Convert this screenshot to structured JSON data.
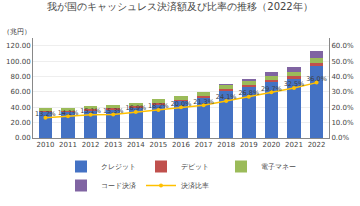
{
  "chart_data": {
    "type": "bar",
    "stacked": true,
    "title": "我が国のキャッシュレス決済額及び比率の推移（2022年）",
    "ylabel": "（兆円）",
    "categories": [
      "2010",
      "2011",
      "2012",
      "2013",
      "2014",
      "2015",
      "2016",
      "2017",
      "2018",
      "2019",
      "2020",
      "2021",
      "2022"
    ],
    "series": [
      {
        "name": "クレジット",
        "type": "bar",
        "color": "#4472C4",
        "values": [
          33.9,
          34.0,
          36.0,
          37.2,
          39.8,
          44.0,
          48.3,
          53.0,
          61.5,
          67.0,
          72.9,
          77.0,
          93.8
        ]
      },
      {
        "name": "デビット",
        "type": "bar",
        "color": "#C0504D",
        "values": [
          1.0,
          1.1,
          1.2,
          1.3,
          1.4,
          1.5,
          1.7,
          1.9,
          2.2,
          2.5,
          2.7,
          3.0,
          3.9
        ]
      },
      {
        "name": "電子マネー",
        "type": "bar",
        "color": "#9BBB59",
        "values": [
          3.8,
          4.0,
          4.3,
          4.5,
          4.9,
          5.0,
          5.1,
          5.2,
          5.4,
          5.5,
          5.3,
          5.6,
          6.1
        ]
      },
      {
        "name": "コード決済",
        "type": "bar",
        "color": "#8064A2",
        "values": [
          0.0,
          0.0,
          0.0,
          0.0,
          0.0,
          0.0,
          0.0,
          0.0,
          0.4,
          1.3,
          4.5,
          7.0,
          9.6
        ]
      },
      {
        "name": "決済比率",
        "type": "line",
        "axis": "y2",
        "color": "#FFC000",
        "marker": "circle",
        "data_labels": true,
        "values": [
          13.2,
          14.1,
          15.1,
          15.3,
          16.9,
          18.2,
          20.0,
          21.3,
          24.1,
          26.8,
          29.7,
          32.5,
          36.0
        ],
        "value_labels": [
          "13.2%",
          "14.1%",
          "15.1%",
          "15.3%",
          "16.9%",
          "18.2%",
          "20.0%",
          "21.3%",
          "24.1%",
          "26.8%",
          "29.7%",
          "32.5%",
          "36.0%"
        ]
      }
    ],
    "ylim": [
      0,
      130
    ],
    "yticks": [
      {
        "value": 0,
        "label": "0.00"
      },
      {
        "value": 20,
        "label": "20.00"
      },
      {
        "value": 40,
        "label": "40.00"
      },
      {
        "value": 60,
        "label": "60.00"
      },
      {
        "value": 80,
        "label": "80.00"
      },
      {
        "value": 100,
        "label": "100.00"
      },
      {
        "value": 120,
        "label": "120.00"
      }
    ],
    "y2lim": [
      0,
      65
    ],
    "y2ticks": [
      {
        "value": 0,
        "label": "0.0%"
      },
      {
        "value": 10,
        "label": "10.0%"
      },
      {
        "value": 20,
        "label": "20.0%"
      },
      {
        "value": 30,
        "label": "30.0%"
      },
      {
        "value": 40,
        "label": "40.0%"
      },
      {
        "value": 50,
        "label": "50.0%"
      },
      {
        "value": 60,
        "label": "60.0%"
      }
    ],
    "grid": true,
    "legend": "bottom"
  }
}
